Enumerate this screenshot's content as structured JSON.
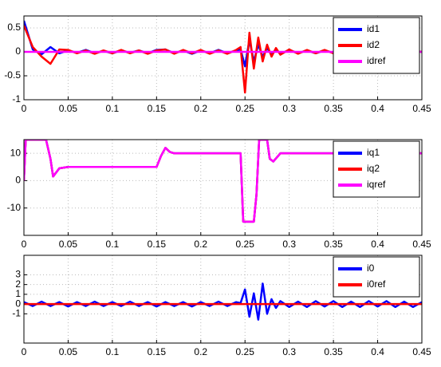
{
  "chart_data": [
    {
      "type": "line",
      "x": [
        0,
        0.01,
        0.02,
        0.03,
        0.04,
        0.05,
        0.06,
        0.07,
        0.08,
        0.09,
        0.1,
        0.11,
        0.12,
        0.13,
        0.14,
        0.15,
        0.16,
        0.17,
        0.18,
        0.19,
        0.2,
        0.21,
        0.22,
        0.23,
        0.24,
        0.245,
        0.25,
        0.255,
        0.26,
        0.265,
        0.27,
        0.275,
        0.28,
        0.285,
        0.29,
        0.3,
        0.31,
        0.32,
        0.33,
        0.34,
        0.35,
        0.36,
        0.37,
        0.38,
        0.39,
        0.4,
        0.41,
        0.42,
        0.43,
        0.44,
        0.45
      ],
      "series": [
        {
          "name": "id1",
          "color": "#0000ff",
          "values": [
            0.65,
            0.05,
            -0.05,
            0.1,
            -0.03,
            0.03,
            -0.02,
            0.04,
            -0.03,
            0.02,
            -0.03,
            0.03,
            -0.02,
            0.03,
            -0.03,
            0.04,
            0.05,
            -0.03,
            0.03,
            -0.04,
            0.03,
            -0.03,
            0.04,
            -0.03,
            0.03,
            0.05,
            -0.3,
            0.25,
            -0.2,
            0.15,
            -0.1,
            0.08,
            -0.06,
            0.05,
            -0.04,
            0.04,
            -0.03,
            0.03,
            -0.03,
            0.03,
            -0.02,
            0.03,
            -0.03,
            0.02,
            -0.03,
            0.03,
            -0.02,
            0.03,
            -0.03,
            0.02,
            0
          ]
        },
        {
          "name": "id2",
          "color": "#ff0000",
          "values": [
            0.55,
            0.1,
            -0.1,
            -0.25,
            0.05,
            0.04,
            -0.03,
            0.03,
            -0.04,
            0.03,
            -0.03,
            0.04,
            -0.03,
            0.03,
            -0.04,
            0.03,
            0.05,
            -0.04,
            0.04,
            -0.03,
            0.04,
            -0.04,
            0.03,
            -0.04,
            0.04,
            0.1,
            -0.85,
            0.4,
            -0.35,
            0.3,
            -0.2,
            0.15,
            -0.1,
            0.08,
            -0.06,
            0.05,
            -0.04,
            0.04,
            -0.03,
            0.04,
            -0.03,
            0.03,
            -0.03,
            0.03,
            -0.02,
            0.03,
            -0.03,
            0.02,
            -0.02,
            0.02,
            0
          ]
        },
        {
          "name": "idref",
          "color": "#ff00ff",
          "values": [
            0,
            0,
            0,
            0,
            0,
            0,
            0,
            0,
            0,
            0,
            0,
            0,
            0,
            0,
            0,
            0,
            0,
            0,
            0,
            0,
            0,
            0,
            0,
            0,
            0,
            0,
            0,
            0,
            0,
            0,
            0,
            0,
            0,
            0,
            0,
            0,
            0,
            0,
            0,
            0,
            0,
            0,
            0,
            0,
            0,
            0,
            0,
            0,
            0,
            0,
            0
          ]
        }
      ],
      "xlim": [
        0,
        0.45
      ],
      "ylim": [
        -1,
        0.75
      ],
      "xticks": [
        0,
        0.05,
        0.1,
        0.15,
        0.2,
        0.25,
        0.3,
        0.35,
        0.4,
        0.45
      ],
      "yticks": [
        -1,
        -0.5,
        0,
        0.5
      ],
      "grid": true,
      "legend": "upper right"
    },
    {
      "type": "line",
      "x": [
        0,
        0.002,
        0.025,
        0.03,
        0.033,
        0.04,
        0.05,
        0.1,
        0.15,
        0.155,
        0.16,
        0.165,
        0.17,
        0.2,
        0.245,
        0.248,
        0.252,
        0.26,
        0.263,
        0.266,
        0.27,
        0.275,
        0.278,
        0.282,
        0.29,
        0.3,
        0.35,
        0.4,
        0.45
      ],
      "series": [
        {
          "name": "iq1",
          "color": "#0000ff",
          "values": [
            0,
            15,
            15,
            8,
            1.5,
            4.5,
            5,
            5,
            5,
            9,
            12,
            10.5,
            10,
            10,
            10,
            -15,
            -15,
            -15,
            -5,
            15,
            15,
            15,
            8,
            7,
            10,
            10,
            10,
            10,
            10
          ]
        },
        {
          "name": "iq2",
          "color": "#ff0000",
          "values": [
            0,
            15,
            15,
            8,
            1.5,
            4.5,
            5,
            5,
            5,
            9,
            12,
            10.5,
            10,
            10,
            10,
            -15,
            -15,
            -15,
            -5,
            15,
            15,
            15,
            8,
            7,
            10,
            10,
            10,
            10,
            10
          ]
        },
        {
          "name": "iqref",
          "color": "#ff00ff",
          "values": [
            0,
            15,
            15,
            8,
            1.5,
            4.5,
            5,
            5,
            5,
            9,
            12,
            10.5,
            10,
            10,
            10,
            -15,
            -15,
            -15,
            -5,
            15,
            15,
            15,
            8,
            7,
            10,
            10,
            10,
            10,
            10
          ]
        }
      ],
      "xlim": [
        0,
        0.45
      ],
      "ylim": [
        -20,
        15
      ],
      "xticks": [
        0,
        0.05,
        0.1,
        0.15,
        0.2,
        0.25,
        0.3,
        0.35,
        0.4,
        0.45
      ],
      "yticks": [
        -10,
        0,
        10
      ],
      "grid": true,
      "legend": "upper right"
    },
    {
      "type": "line",
      "x": [
        0,
        0.01,
        0.02,
        0.03,
        0.04,
        0.05,
        0.06,
        0.07,
        0.08,
        0.09,
        0.1,
        0.11,
        0.12,
        0.13,
        0.14,
        0.15,
        0.16,
        0.17,
        0.18,
        0.19,
        0.2,
        0.21,
        0.22,
        0.23,
        0.24,
        0.245,
        0.25,
        0.255,
        0.26,
        0.265,
        0.27,
        0.275,
        0.28,
        0.285,
        0.29,
        0.3,
        0.31,
        0.32,
        0.33,
        0.34,
        0.35,
        0.36,
        0.37,
        0.38,
        0.39,
        0.4,
        0.41,
        0.42,
        0.43,
        0.44,
        0.45
      ],
      "series": [
        {
          "name": "i0",
          "color": "#0000ff",
          "values": [
            0.2,
            -0.2,
            0.25,
            -0.2,
            0.2,
            -0.25,
            0.2,
            -0.2,
            0.25,
            -0.2,
            0.2,
            -0.2,
            0.25,
            -0.2,
            0.2,
            -0.25,
            0.2,
            -0.2,
            0.2,
            -0.25,
            0.2,
            -0.2,
            0.25,
            -0.2,
            0.2,
            0.1,
            1.5,
            -1.3,
            1.1,
            -1.6,
            2.1,
            -1.0,
            0.5,
            -0.4,
            0.3,
            -0.3,
            0.25,
            -0.3,
            0.3,
            -0.25,
            0.3,
            -0.3,
            0.25,
            -0.3,
            0.3,
            -0.25,
            0.3,
            -0.3,
            0.25,
            -0.3,
            0.2
          ]
        },
        {
          "name": "i0ref",
          "color": "#ff0000",
          "values": [
            0,
            0,
            0,
            0,
            0,
            0,
            0,
            0,
            0,
            0,
            0,
            0,
            0,
            0,
            0,
            0,
            0,
            0,
            0,
            0,
            0,
            0,
            0,
            0,
            0,
            0,
            0,
            0,
            0,
            0,
            0,
            0,
            0,
            0,
            0,
            0,
            0,
            0,
            0,
            0,
            0,
            0,
            0,
            0,
            0,
            0,
            0,
            0,
            0,
            0,
            0
          ]
        }
      ],
      "xlim": [
        0,
        0.45
      ],
      "ylim": [
        -4,
        5
      ],
      "xticks": [
        0,
        0.05,
        0.1,
        0.15,
        0.2,
        0.25,
        0.3,
        0.35,
        0.4,
        0.45
      ],
      "yticks": [
        -1,
        0,
        1,
        2,
        3
      ],
      "grid": true,
      "legend": "upper right"
    }
  ]
}
